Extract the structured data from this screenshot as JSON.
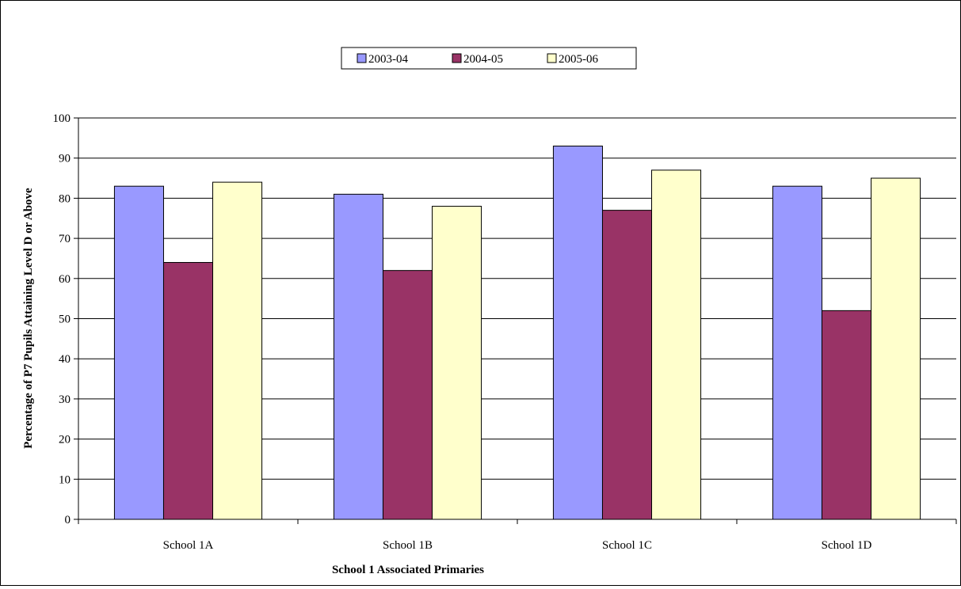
{
  "chart_data": {
    "type": "bar",
    "title": "",
    "xlabel": "School 1 Associated Primaries",
    "ylabel": "Percentage of P7 Pupils Attaining Level D or Above",
    "categories": [
      "School 1A",
      "School 1B",
      "School 1C",
      "School 1D"
    ],
    "series": [
      {
        "name": "2003-04",
        "values": [
          83,
          81,
          93,
          83
        ],
        "color": "#9999FF"
      },
      {
        "name": "2004-05",
        "values": [
          64,
          62,
          77,
          52
        ],
        "color": "#993366"
      },
      {
        "name": "2005-06",
        "values": [
          84,
          78,
          87,
          85
        ],
        "color": "#FFFFCC"
      }
    ],
    "ylim": [
      0,
      100
    ],
    "yticks": [
      "0",
      "10",
      "20",
      "30",
      "40",
      "50",
      "60",
      "70",
      "80",
      "90",
      "100"
    ],
    "grid": true,
    "legend": "top-center"
  }
}
